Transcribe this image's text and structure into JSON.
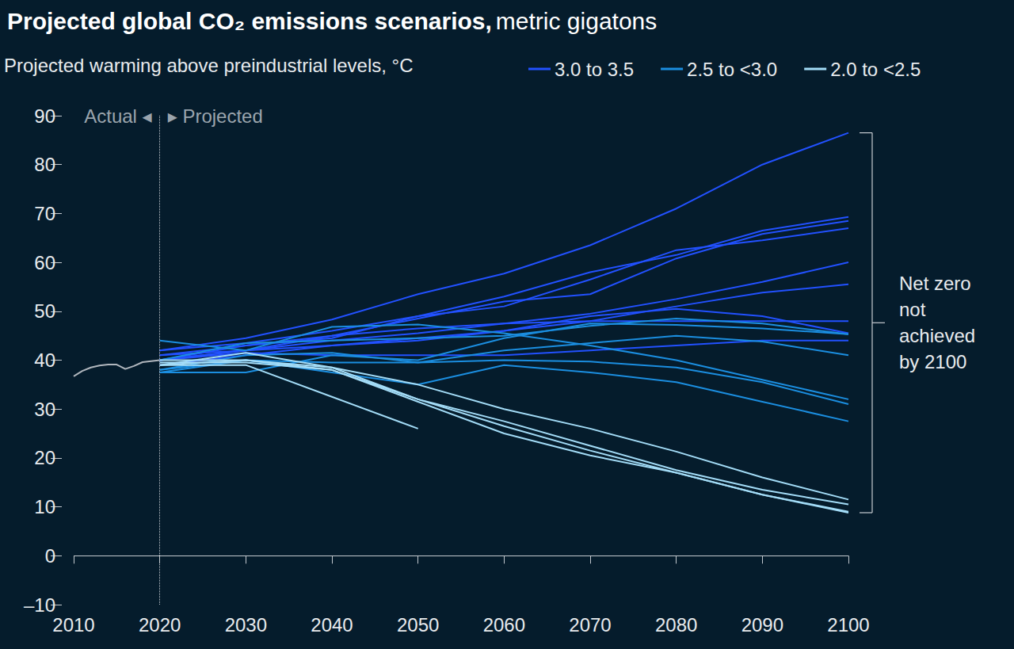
{
  "chart_data": {
    "type": "line",
    "title": "Projected global CO₂ emissions scenarios,",
    "units": "metric gigatons",
    "legend_title": "Projected warming above preindustrial levels, °C",
    "legend": "top",
    "grid": false,
    "baseline": 0,
    "annotations": {
      "actual": "Actual ◂",
      "projected": "▸ Projected",
      "divider": 2020,
      "bracket": "Net zero\nnot\nachieved\nby 2100"
    },
    "xlim": [
      2010,
      2100
    ],
    "xticks": [
      2010,
      2020,
      2030,
      2040,
      2050,
      2060,
      2070,
      2080,
      2090,
      2100
    ],
    "ylim": [
      -10,
      90
    ],
    "yticks": [
      {
        "value": -10,
        "label": "–10"
      },
      0,
      10,
      20,
      30,
      40,
      50,
      60,
      70,
      80,
      90
    ],
    "series": [
      {
        "color": "#b0b6bd",
        "x": [
          2010,
          2011,
          2012,
          2013,
          2014,
          2015,
          2016,
          2017,
          2018,
          2019,
          2020
        ],
        "values": [
          36.7,
          37.8,
          38.5,
          38.9,
          39.1,
          39.1,
          38.2,
          38.8,
          39.6,
          39.8,
          40.0
        ]
      },
      {
        "name": "3.0 to 3.5",
        "color": "#2251ff",
        "x": [
          2020,
          2030,
          2040,
          2050,
          2060,
          2070,
          2080,
          2090,
          2100
        ],
        "values": [
          42,
          44.5,
          48.3,
          53.5,
          57.7,
          63.5,
          71,
          80,
          86.5
        ]
      },
      {
        "name": "3.0 to 3.5",
        "color": "#2251ff",
        "x": [
          2020,
          2030,
          2040,
          2050,
          2060,
          2070,
          2080,
          2090,
          2100
        ],
        "values": [
          40,
          43,
          44.5,
          49,
          53,
          58,
          61.5,
          66.5,
          69.3
        ]
      },
      {
        "name": "3.0 to 3.5",
        "color": "#2251ff",
        "x": [
          2020,
          2030,
          2040,
          2050,
          2060,
          2070,
          2080,
          2090,
          2100
        ],
        "values": [
          41,
          42,
          45,
          48.5,
          52,
          53.5,
          60.8,
          65.8,
          68.5
        ]
      },
      {
        "name": "3.0 to 3.5",
        "color": "#2251ff",
        "x": [
          2020,
          2030,
          2040,
          2050,
          2060,
          2070,
          2080,
          2090,
          2100
        ],
        "values": [
          42,
          43.5,
          46,
          49,
          51,
          56.5,
          62.5,
          64.5,
          67
        ]
      },
      {
        "name": "3.0 to 3.5",
        "color": "#2251ff",
        "x": [
          2020,
          2030,
          2040,
          2050,
          2060,
          2070,
          2080,
          2090,
          2100
        ],
        "values": [
          40,
          42,
          44,
          45.5,
          47.5,
          49.5,
          52.5,
          56,
          60
        ]
      },
      {
        "name": "3.0 to 3.5",
        "color": "#2251ff",
        "x": [
          2020,
          2030,
          2040,
          2050,
          2060,
          2070,
          2080,
          2090,
          2100
        ],
        "values": [
          39,
          41,
          43,
          44.5,
          46,
          48,
          51,
          53.8,
          55.5
        ]
      },
      {
        "name": "3.0 to 3.5",
        "color": "#2251ff",
        "x": [
          2020,
          2030,
          2040,
          2050,
          2060,
          2070,
          2080,
          2090,
          2100
        ],
        "values": [
          41,
          43,
          45,
          46.5,
          47.5,
          48,
          48,
          48,
          48
        ]
      },
      {
        "name": "3.0 to 3.5",
        "color": "#2251ff",
        "x": [
          2020,
          2030,
          2040,
          2050,
          2060,
          2070,
          2080,
          2090,
          2100
        ],
        "values": [
          40,
          42,
          43,
          44,
          46,
          49,
          50.5,
          49,
          45.5
        ]
      },
      {
        "name": "3.0 to 3.5",
        "color": "#2251ff",
        "x": [
          2020,
          2030,
          2040,
          2050,
          2060,
          2070,
          2080,
          2090,
          2100
        ],
        "values": [
          40,
          41.5,
          41,
          41,
          41,
          42,
          43,
          44,
          44
        ]
      },
      {
        "name": "2.5 to <3.0",
        "color": "#1b8ee0",
        "x": [
          2020,
          2030,
          2040,
          2050,
          2060,
          2070,
          2080,
          2090,
          2100
        ],
        "values": [
          44,
          42,
          46.8,
          47.3,
          45.5,
          43,
          40,
          36,
          32
        ]
      },
      {
        "name": "2.5 to <3.0",
        "color": "#1b8ee0",
        "x": [
          2020,
          2030,
          2040,
          2050,
          2060,
          2070,
          2080,
          2090,
          2100
        ],
        "values": [
          37.5,
          37.5,
          41,
          40,
          44.5,
          47.5,
          47.2,
          46.5,
          45.3
        ]
      },
      {
        "name": "2.5 to <3.0",
        "color": "#1b8ee0",
        "x": [
          2020,
          2030,
          2040,
          2050,
          2060,
          2070,
          2080,
          2090,
          2100
        ],
        "values": [
          38,
          41,
          41.5,
          39.5,
          42,
          43.5,
          45,
          43.8,
          41
        ]
      },
      {
        "name": "2.5 to <3.0",
        "color": "#1b8ee0",
        "x": [
          2020,
          2030,
          2040,
          2050,
          2060,
          2070,
          2080,
          2090,
          2100
        ],
        "values": [
          37.5,
          40,
          39.5,
          39.5,
          40,
          39.7,
          38.5,
          35.5,
          31
        ]
      },
      {
        "name": "2.5 to <3.0",
        "color": "#1b8ee0",
        "x": [
          2020,
          2030,
          2040,
          2050,
          2060,
          2070,
          2080,
          2090,
          2100
        ],
        "values": [
          38,
          40,
          37.5,
          35,
          39,
          37.5,
          35.5,
          31.5,
          27.5
        ]
      },
      {
        "name": "2.5 to <3.0",
        "color": "#1b8ee0",
        "x": [
          2020,
          2030,
          2040,
          2050,
          2060,
          2070,
          2080,
          2090,
          2100
        ],
        "values": [
          40,
          43.5,
          44,
          44.5,
          45,
          47,
          48.5,
          47.5,
          45.3
        ]
      },
      {
        "name": "2.0 to <2.5",
        "color": "#a3dcf7",
        "x": [
          2020,
          2030,
          2040,
          2050,
          2060,
          2070,
          2080,
          2090,
          2100
        ],
        "values": [
          39,
          39,
          32.5,
          26,
          null,
          null,
          null,
          null,
          null
        ]
      },
      {
        "name": "2.0 to <2.5",
        "color": "#a3dcf7",
        "x": [
          2020,
          2030,
          2040,
          2050,
          2060,
          2070,
          2080,
          2090,
          2100
        ],
        "values": [
          39,
          41.5,
          38.5,
          35,
          30,
          26,
          21.3,
          16,
          11.5
        ]
      },
      {
        "name": "2.0 to <2.5",
        "color": "#a3dcf7",
        "x": [
          2020,
          2030,
          2040,
          2050,
          2060,
          2070,
          2080,
          2090,
          2100
        ],
        "values": [
          40,
          40,
          38,
          32,
          27.5,
          22.5,
          17.5,
          13.5,
          10.5
        ]
      },
      {
        "name": "2.0 to <2.5",
        "color": "#a3dcf7",
        "x": [
          2020,
          2030,
          2040,
          2050,
          2060,
          2070,
          2080,
          2090,
          2100
        ],
        "values": [
          39,
          40,
          38.5,
          32,
          26.5,
          21.5,
          17,
          12.5,
          9
        ]
      },
      {
        "name": "2.0 to <2.5",
        "color": "#a3dcf7",
        "x": [
          2020,
          2030,
          2040,
          2050,
          2060,
          2070,
          2080,
          2090,
          2100
        ],
        "values": [
          39.5,
          39.5,
          38,
          31.5,
          25,
          20.5,
          17,
          12.5,
          8.8
        ]
      }
    ]
  }
}
